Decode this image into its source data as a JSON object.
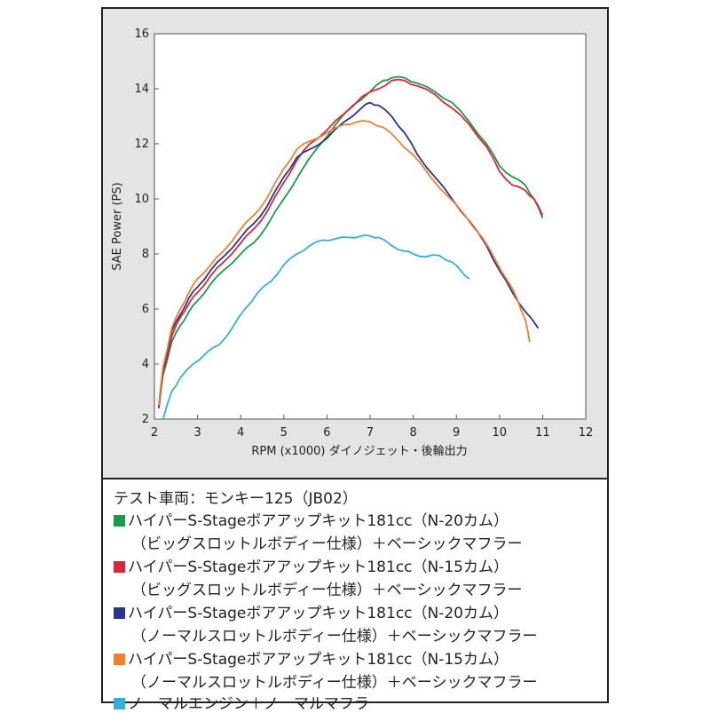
{
  "chart_data": {
    "type": "line",
    "xlabel": "RPM (x1000) ダイノジェット・後輪出力",
    "ylabel": "SAE Power (PS)",
    "xlim": [
      2,
      12
    ],
    "ylim": [
      2,
      16
    ],
    "xticks": [
      "2",
      "3",
      "4",
      "5",
      "6",
      "7",
      "8",
      "9",
      "10",
      "11",
      "12"
    ],
    "yticks": [
      "2",
      "4",
      "6",
      "8",
      "10",
      "12",
      "14",
      "16"
    ],
    "grid": false,
    "series": [
      {
        "name": "ハイパーS-Stageボアアップキット181cc (N-20カム) (ビッグスロットルボディー仕様) ＋ベーシックマフラー",
        "color": "#1a9a4a",
        "x": [
          2.1,
          2.2,
          2.4,
          2.6,
          2.8,
          3.0,
          3.3,
          3.6,
          4.0,
          4.3,
          4.6,
          5.0,
          5.4,
          5.8,
          6.2,
          6.6,
          7.0,
          7.3,
          7.5,
          7.8,
          8.1,
          8.5,
          8.9,
          9.3,
          9.7,
          10.0,
          10.3,
          10.6,
          10.8,
          11.0
        ],
        "values": [
          2.4,
          3.6,
          4.8,
          5.4,
          5.9,
          6.3,
          6.9,
          7.4,
          8.0,
          8.4,
          9.0,
          10.0,
          11.0,
          11.9,
          12.7,
          13.4,
          13.9,
          14.3,
          14.4,
          14.4,
          14.2,
          13.9,
          13.5,
          12.8,
          12.0,
          11.2,
          10.8,
          10.5,
          10.0,
          9.3
        ]
      },
      {
        "name": "ハイパーS-Stageボアアップキット181cc (N-15カム) (ビッグスロットルボディー仕様) ＋ベーシックマフラー",
        "color": "#d8283a",
        "x": [
          2.1,
          2.2,
          2.4,
          2.6,
          2.8,
          3.0,
          3.3,
          3.6,
          4.0,
          4.3,
          4.6,
          5.0,
          5.3,
          5.6,
          6.0,
          6.4,
          6.8,
          7.2,
          7.5,
          7.8,
          8.1,
          8.5,
          8.9,
          9.3,
          9.7,
          10.0,
          10.3,
          10.6,
          10.8,
          11.0
        ],
        "values": [
          2.4,
          3.7,
          5.0,
          5.7,
          6.2,
          6.6,
          7.2,
          7.7,
          8.4,
          8.9,
          9.5,
          10.6,
          11.4,
          12.0,
          12.5,
          13.1,
          13.7,
          14.0,
          14.3,
          14.3,
          14.1,
          13.8,
          13.3,
          12.7,
          11.9,
          11.0,
          10.5,
          10.3,
          10.0,
          9.4
        ]
      },
      {
        "name": "ハイパーS-Stageボアアップキット181cc (N-20カム) (ノーマルスロットルボディー仕様) ＋ベーシックマフラー",
        "color": "#2a3488",
        "x": [
          2.1,
          2.2,
          2.4,
          2.6,
          2.8,
          3.0,
          3.3,
          3.6,
          4.0,
          4.3,
          4.6,
          5.0,
          5.3,
          5.6,
          6.0,
          6.4,
          6.8,
          7.0,
          7.2,
          7.5,
          7.8,
          8.1,
          8.5,
          8.9,
          9.3,
          9.7,
          10.0,
          10.3,
          10.6,
          10.9
        ],
        "values": [
          2.4,
          3.8,
          5.2,
          5.8,
          6.4,
          6.8,
          7.4,
          7.9,
          8.6,
          9.1,
          9.7,
          10.8,
          11.5,
          11.8,
          12.2,
          12.8,
          13.3,
          13.5,
          13.4,
          13.0,
          12.4,
          11.6,
          10.8,
          10.0,
          9.2,
          8.3,
          7.4,
          6.6,
          5.9,
          5.3
        ]
      },
      {
        "name": "ハイパーS-Stageボアアップキット181cc (N-15カム) (ノーマルスロットルボディー仕様) ＋ベーシックマフラー",
        "color": "#ee8030",
        "x": [
          2.1,
          2.2,
          2.4,
          2.6,
          2.8,
          3.0,
          3.3,
          3.6,
          4.0,
          4.3,
          4.6,
          5.0,
          5.3,
          5.6,
          6.0,
          6.4,
          6.7,
          7.0,
          7.3,
          7.6,
          8.0,
          8.4,
          8.8,
          9.2,
          9.6,
          9.9,
          10.2,
          10.4,
          10.6,
          10.7
        ],
        "values": [
          2.5,
          3.9,
          5.3,
          6.0,
          6.6,
          7.1,
          7.6,
          8.1,
          8.9,
          9.4,
          10.0,
          11.1,
          11.8,
          12.1,
          12.4,
          12.7,
          12.8,
          12.8,
          12.6,
          12.2,
          11.6,
          10.8,
          10.1,
          9.4,
          8.6,
          7.8,
          7.0,
          6.4,
          5.6,
          4.8
        ]
      },
      {
        "name": "ノーマルエンジン＋ノーマルマフラー",
        "color": "#33aedd",
        "x": [
          2.2,
          2.4,
          2.6,
          2.9,
          3.2,
          3.5,
          3.8,
          4.1,
          4.4,
          4.7,
          5.0,
          5.3,
          5.6,
          5.9,
          6.2,
          6.5,
          6.8,
          7.0,
          7.2,
          7.5,
          7.8,
          8.0,
          8.3,
          8.6,
          8.9,
          9.1,
          9.3
        ],
        "values": [
          2.0,
          3.0,
          3.5,
          4.0,
          4.4,
          4.7,
          5.3,
          6.0,
          6.6,
          7.0,
          7.6,
          8.0,
          8.3,
          8.5,
          8.55,
          8.6,
          8.65,
          8.65,
          8.6,
          8.3,
          8.1,
          8.0,
          7.9,
          7.95,
          7.7,
          7.4,
          7.1
        ]
      }
    ]
  },
  "legend": {
    "title": "テスト車両：モンキー125（JB02）",
    "entries": [
      {
        "color": "#1a9a4a",
        "label": "ハイパーS-Stageボアアップキット181cc（N-20カム）",
        "sub": "（ビッグスロットルボディー仕様）＋ベーシックマフラー"
      },
      {
        "color": "#d8283a",
        "label": "ハイパーS-Stageボアアップキット181cc（N-15カム）",
        "sub": "（ビッグスロットルボディー仕様）＋ベーシックマフラー"
      },
      {
        "color": "#2a3488",
        "label": "ハイパーS-Stageボアアップキット181cc（N-20カム）",
        "sub": "（ノーマルスロットルボディー仕様）＋ベーシックマフラー"
      },
      {
        "color": "#ee8030",
        "label": "ハイパーS-Stageボアアップキット181cc（N-15カム）",
        "sub": "（ノーマルスロットルボディー仕様）＋ベーシックマフラー"
      },
      {
        "color": "#33aedd",
        "label": "ノーマルエンジン＋ノーマルマフラー",
        "sub": ""
      }
    ]
  }
}
